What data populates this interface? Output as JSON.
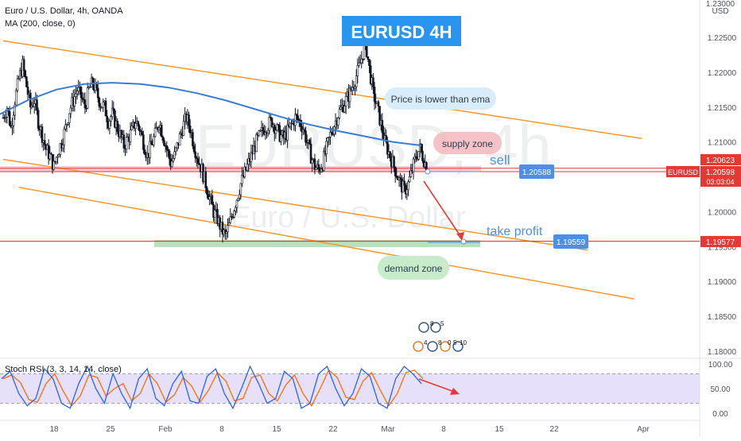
{
  "header": {
    "symbol_line": "Euro / U.S. Dollar, 4h, OANDA",
    "indicator_line": "MA (200, close, 0)",
    "title_box": "EURUSD  4H"
  },
  "watermark": {
    "symbol": "EURUSD, 4h",
    "name": "Euro / U.S. Dollar"
  },
  "annotations": {
    "price_lower": "Price is lower than ema",
    "supply_zone": "supply zone",
    "sell": "sell",
    "take_profit": "take profit",
    "demand_zone": "demand zone"
  },
  "price_axis": {
    "currency": "USD",
    "ticks": [
      "1.22500",
      "1.22000",
      "1.21500",
      "1.21000",
      "1.20500",
      "1.20000",
      "1.19500",
      "1.19000",
      "1.18500",
      "1.18000"
    ],
    "tick_values": [
      1.225,
      1.22,
      1.215,
      1.21,
      1.205,
      1.2,
      1.195,
      1.19,
      1.185,
      1.18
    ],
    "top_partial": "1.23000"
  },
  "price_tags": {
    "upper_red": "1.20623",
    "symbol_tag": "EURUSD",
    "current": "1.20598",
    "countdown": "03:03:04",
    "lower_red": "1.19577",
    "entry": "1.20588",
    "target": "1.19559"
  },
  "rsi": {
    "title": "Stoch RSI (3, 3, 14, 14, close)",
    "ticks": [
      "100.00",
      "50.00",
      "0.00"
    ],
    "tick_values": [
      100,
      50,
      0
    ],
    "band_upper": 80,
    "band_lower": 20
  },
  "time_axis": {
    "ticks": [
      "18",
      "25",
      "Feb",
      "8",
      "15",
      "22",
      "Mar",
      "8",
      "15",
      "22",
      "Apr"
    ]
  },
  "icons": {
    "top_row": [
      "8",
      "5"
    ],
    "bottom_row": [
      "4",
      "8",
      "0",
      "5",
      "10"
    ]
  },
  "colors": {
    "ma": "#3a7bd5",
    "channel": "#f59a2e",
    "candle": "#131722",
    "resistance": "#e53935",
    "demand": "#a5d6a7",
    "supply": "#f3b7bd",
    "rsi_k": "#2962ff",
    "rsi_d": "#ff6d00",
    "rsi_band": "#d7cbf8",
    "title_bg": "#2a95f0",
    "entry_tag": "#4f8ee6"
  },
  "chart_data": {
    "type": "candlestick",
    "title": "EURUSD  4H",
    "ylim": [
      1.178,
      1.23
    ],
    "resistance_level": 1.20623,
    "support_level": 1.19577,
    "entry": 1.20588,
    "target": 1.19559,
    "channel_lines": [
      {
        "from": [
          0,
          1.2245
        ],
        "to": [
          164,
          1.2105
        ]
      },
      {
        "from": [
          0,
          1.2075
        ],
        "to": [
          150,
          1.1945
        ]
      },
      {
        "from": [
          4,
          1.2035
        ],
        "to": [
          162,
          1.1875
        ]
      }
    ],
    "close_path": [
      1.2135,
      1.215,
      1.212,
      1.216,
      1.219,
      1.221,
      1.218,
      1.215,
      1.216,
      1.213,
      1.211,
      1.209,
      1.208,
      1.2065,
      1.2085,
      1.21,
      1.212,
      1.2145,
      1.216,
      1.2175,
      1.2165,
      1.215,
      1.2175,
      1.2185,
      1.217,
      1.2155,
      1.215,
      1.213,
      1.214,
      1.2125,
      1.211,
      1.2095,
      1.2105,
      1.2115,
      1.213,
      1.212,
      1.21,
      1.208,
      1.2095,
      1.211,
      1.213,
      1.211,
      1.209,
      1.207,
      1.208,
      1.21,
      1.212,
      1.2135,
      1.212,
      1.2095,
      1.2075,
      1.206,
      1.204,
      1.202,
      1.2,
      1.199,
      1.1975,
      1.1965,
      1.198,
      1.2,
      1.202,
      1.204,
      1.2055,
      1.207,
      1.2085,
      1.21,
      1.211,
      1.212,
      1.2125,
      1.213,
      1.212,
      1.211,
      1.2105,
      1.2115,
      1.2125,
      1.2135,
      1.213,
      1.212,
      1.21,
      1.208,
      1.2065,
      1.206,
      1.207,
      1.209,
      1.211,
      1.2125,
      1.214,
      1.215,
      1.216,
      1.217,
      1.2185,
      1.22,
      1.222,
      1.2245,
      1.2205,
      1.217,
      1.215,
      1.2125,
      1.21,
      1.2085,
      1.207,
      1.2055,
      1.204,
      1.203,
      1.204,
      1.206,
      1.208,
      1.209,
      1.2075,
      1.206
    ],
    "ma200_path": [
      1.214,
      1.216,
      1.2175,
      1.2183,
      1.2185,
      1.2183,
      1.2178,
      1.217,
      1.216,
      1.2148,
      1.2136,
      1.2125,
      1.2116,
      1.2108,
      1.21,
      1.2095
    ],
    "rsi_k": [
      70,
      85,
      40,
      15,
      30,
      90,
      70,
      20,
      10,
      60,
      95,
      50,
      20,
      80,
      40,
      10,
      70,
      90,
      30,
      15,
      60,
      85,
      25,
      20,
      75,
      90,
      40,
      10,
      50,
      95,
      60,
      20,
      30,
      85,
      70,
      10,
      20,
      80,
      95,
      50,
      15,
      40,
      90,
      75,
      20,
      10,
      70,
      95,
      80,
      60
    ]
  }
}
